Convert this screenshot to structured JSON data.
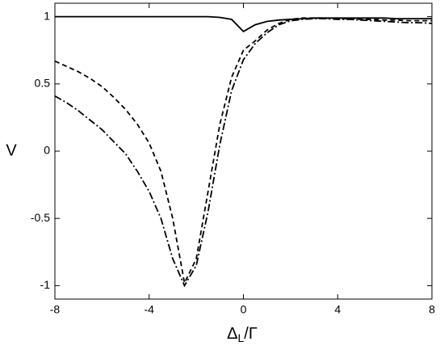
{
  "chart_data": {
    "type": "line",
    "x_label": [
      "Δ",
      "L",
      "/Γ"
    ],
    "y_label": "V",
    "x": [
      -8,
      -7.5,
      -7,
      -6.5,
      -6,
      -5.5,
      -5,
      -4.5,
      -4,
      -3.5,
      -3,
      -2.5,
      -2,
      -1.5,
      -1,
      -0.5,
      0,
      0.5,
      1,
      1.5,
      2,
      2.5,
      3,
      3.5,
      4,
      4.5,
      5,
      5.5,
      6,
      6.5,
      7,
      7.5,
      8
    ],
    "series": [
      {
        "color": "#000000",
        "style": "solid",
        "values": [
          1,
          1,
          1,
          1,
          1,
          1,
          1,
          1,
          1,
          1,
          1,
          1,
          1,
          1,
          0.995,
          0.98,
          0.89,
          0.94,
          0.965,
          0.975,
          0.98,
          0.985,
          0.99,
          0.99,
          0.99,
          0.99,
          0.99,
          0.99,
          0.99,
          0.985,
          0.985,
          0.985,
          0.985
        ]
      },
      {
        "color": "#000000",
        "style": "dashed",
        "values": [
          0.67,
          0.63,
          0.59,
          0.54,
          0.48,
          0.4,
          0.31,
          0.2,
          0.06,
          -0.15,
          -0.5,
          -0.98,
          -0.8,
          -0.3,
          0.2,
          0.55,
          0.75,
          0.82,
          0.9,
          0.95,
          0.98,
          0.99,
          0.99,
          0.99,
          0.985,
          0.985,
          0.98,
          0.98,
          0.975,
          0.975,
          0.97,
          0.97,
          0.97
        ]
      },
      {
        "color": "#000000",
        "style": "dashdot",
        "values": [
          0.41,
          0.36,
          0.3,
          0.23,
          0.16,
          0.07,
          -0.02,
          -0.15,
          -0.3,
          -0.5,
          -0.8,
          -1,
          -0.85,
          -0.45,
          0.05,
          0.45,
          0.68,
          0.8,
          0.88,
          0.94,
          0.97,
          0.98,
          0.985,
          0.985,
          0.98,
          0.98,
          0.975,
          0.97,
          0.965,
          0.96,
          0.955,
          0.955,
          0.95
        ]
      }
    ],
    "xlim": [
      -8,
      8
    ],
    "xticks": [
      -8,
      -4,
      0,
      4,
      8
    ],
    "ylim": [
      -1.1,
      1.1
    ],
    "yticks": [
      -1,
      -0.5,
      0,
      0.5,
      1
    ]
  }
}
